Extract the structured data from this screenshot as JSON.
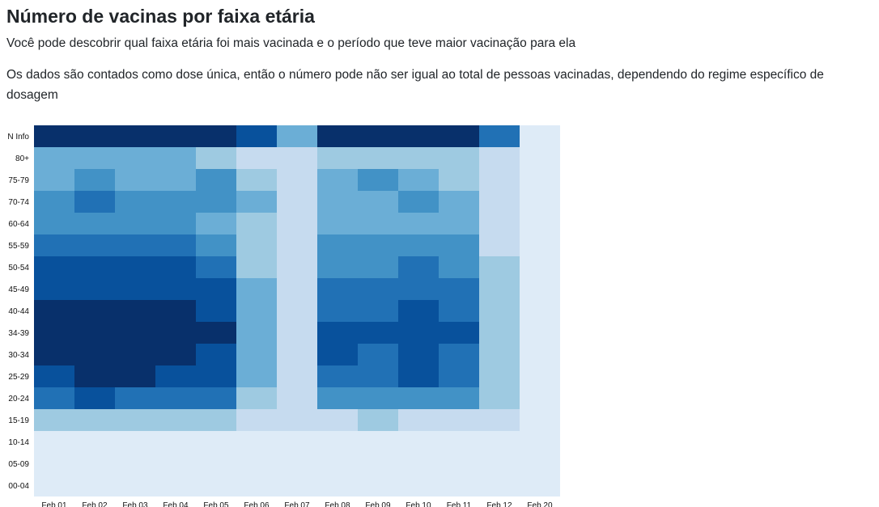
{
  "header": {
    "title": "Número de vacinas por faixa etária",
    "description_1": "Você pode descobrir qual faixa etária foi mais vacinada e o período que teve maior vacinação para ela",
    "description_2": "Os dados são contados como dose única, então o número pode não ser igual ao total de pessoas vacinadas, dependendo do regime específico de dosagem"
  },
  "colors": {
    "scale": [
      "#deebf7",
      "#c6dbef",
      "#9ecae1",
      "#6baed6",
      "#4292c6",
      "#2171b5",
      "#08519c",
      "#08306b"
    ]
  },
  "chart_data": {
    "type": "heatmap",
    "title": "Número de vacinas por faixa etária",
    "x_categories": [
      "Feb 01",
      "Feb 02",
      "Feb 03",
      "Feb 04",
      "Feb 05",
      "Feb 06",
      "Feb 07",
      "Feb 08",
      "Feb 09",
      "Feb 10",
      "Feb 11",
      "Feb 12",
      "Feb 20"
    ],
    "y_categories": [
      "N Info",
      "80+",
      "75-79",
      "70-74",
      "60-64",
      "55-59",
      "50-54",
      "45-49",
      "40-44",
      "34-39",
      "30-34",
      "25-29",
      "20-24",
      "15-19",
      "10-14",
      "05-09",
      "00-04"
    ],
    "value_scale": "relative intensity level 0 (lowest) to 7 (highest)",
    "values": [
      [
        7,
        7,
        7,
        7,
        7,
        6,
        3,
        7,
        7,
        7,
        7,
        5,
        0
      ],
      [
        3,
        3,
        3,
        3,
        2,
        1,
        1,
        2,
        2,
        2,
        2,
        1,
        0
      ],
      [
        3,
        4,
        3,
        3,
        4,
        2,
        1,
        3,
        4,
        3,
        2,
        1,
        0
      ],
      [
        4,
        5,
        4,
        4,
        4,
        3,
        1,
        3,
        3,
        4,
        3,
        1,
        0
      ],
      [
        4,
        4,
        4,
        4,
        3,
        2,
        1,
        3,
        3,
        3,
        3,
        1,
        0
      ],
      [
        5,
        5,
        5,
        5,
        4,
        2,
        1,
        4,
        4,
        4,
        4,
        1,
        0
      ],
      [
        6,
        6,
        6,
        6,
        5,
        2,
        1,
        4,
        4,
        5,
        4,
        2,
        0
      ],
      [
        6,
        6,
        6,
        6,
        6,
        3,
        1,
        5,
        5,
        5,
        5,
        2,
        0
      ],
      [
        7,
        7,
        7,
        7,
        6,
        3,
        1,
        5,
        5,
        6,
        5,
        2,
        0
      ],
      [
        7,
        7,
        7,
        7,
        7,
        3,
        1,
        6,
        6,
        6,
        6,
        2,
        0
      ],
      [
        7,
        7,
        7,
        7,
        6,
        3,
        1,
        6,
        5,
        6,
        5,
        2,
        0
      ],
      [
        6,
        7,
        7,
        6,
        6,
        3,
        1,
        5,
        5,
        6,
        5,
        2,
        0
      ],
      [
        5,
        6,
        5,
        5,
        5,
        2,
        1,
        4,
        4,
        4,
        4,
        2,
        0
      ],
      [
        2,
        2,
        2,
        2,
        2,
        1,
        1,
        1,
        2,
        1,
        1,
        1,
        0
      ],
      [
        0,
        0,
        0,
        0,
        0,
        0,
        0,
        0,
        0,
        0,
        0,
        0,
        0
      ],
      [
        0,
        0,
        0,
        0,
        0,
        0,
        0,
        0,
        0,
        0,
        0,
        0,
        0
      ],
      [
        0,
        0,
        0,
        0,
        0,
        0,
        0,
        0,
        0,
        0,
        0,
        0,
        0
      ]
    ],
    "xlabel": "",
    "ylabel": "",
    "grid": false,
    "legend": "none"
  }
}
